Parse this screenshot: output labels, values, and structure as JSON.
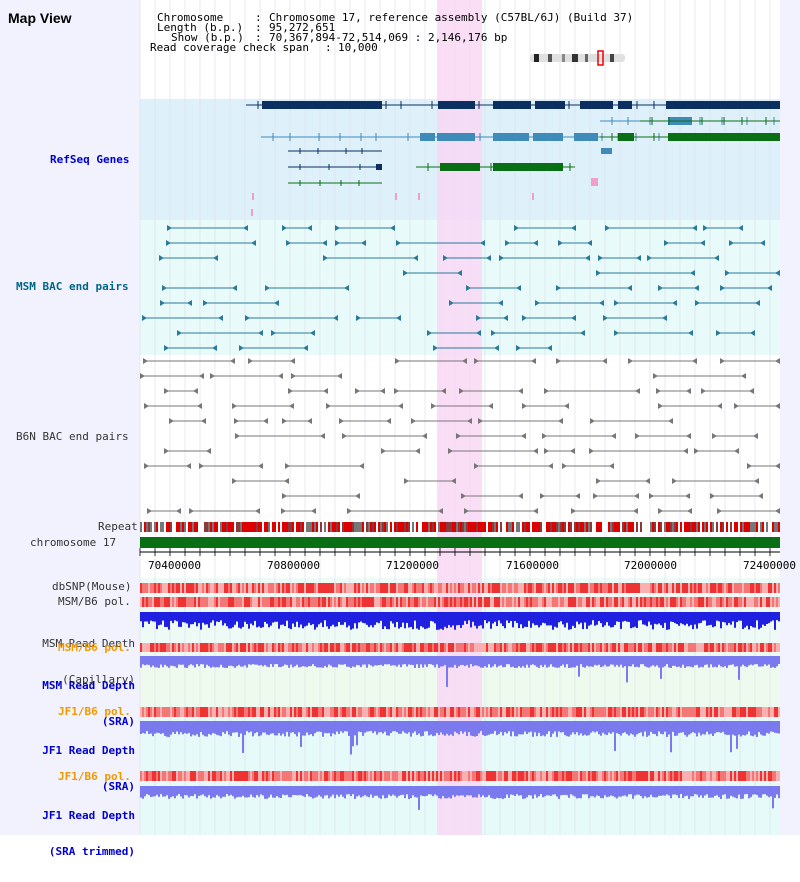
{
  "title": "Map View",
  "info": {
    "chromosome_label": "Chromosome",
    "chromosome_value": "Chromosome 17, reference assembly (C57BL/6J) (Build 37)",
    "length_label": "Length (b.p.)",
    "length_value": "95,272,651",
    "show_label": "Show (b.p.)",
    "show_value": "70,367,894-72,514,069 : 2,146,176 bp",
    "coverage_label": "Read coverage check span",
    "coverage_value": "10,000"
  },
  "tracks": {
    "refseq": "RefSeq Genes",
    "msm_bac": "MSM BAC end pairs",
    "b6n_bac": "B6N BAC end pairs",
    "repeat": "Repeat",
    "chromosome": "chromosome 17",
    "dbsnp": "dbSNP(Mouse)",
    "msm_b6_pol": "MSM/B6 pol.",
    "msm_depth_cap_1": "MSM Read Depth",
    "msm_depth_cap_2": "(Capillary)",
    "msm_b6_pol_sra": "MSM/B6 pol.",
    "msm_depth_sra_1": "MSM Read Depth",
    "msm_depth_sra_2": "(SRA)",
    "jf1_b6_pol": "JF1/B6 pol.",
    "jf1_depth_1": "JF1 Read Depth",
    "jf1_depth_2": "(SRA)",
    "jf1_b6_pol_2": "JF1/B6 pol.",
    "jf1_trim_1": "JF1 Read Depth",
    "jf1_trim_2": "(SRA trimmed)"
  },
  "axis_ticks": [
    "70400000",
    "70800000",
    "71200000",
    "71600000",
    "72000000",
    "72400000"
  ],
  "colors": {
    "refseq_bg": "#def0fa",
    "msm_bg": "#e8fafa",
    "highlight": "#f8d8f4",
    "gene_dark": "#0a2f60",
    "gene_mid": "#3e8ab8",
    "gene_green": "#0a6e14",
    "chromosome": "#0a6e14",
    "repeat_red": "#dd0000",
    "depth_blue": "#2020e0",
    "depth_light": "#7a7aee",
    "pol_red": "#ee4444"
  }
}
